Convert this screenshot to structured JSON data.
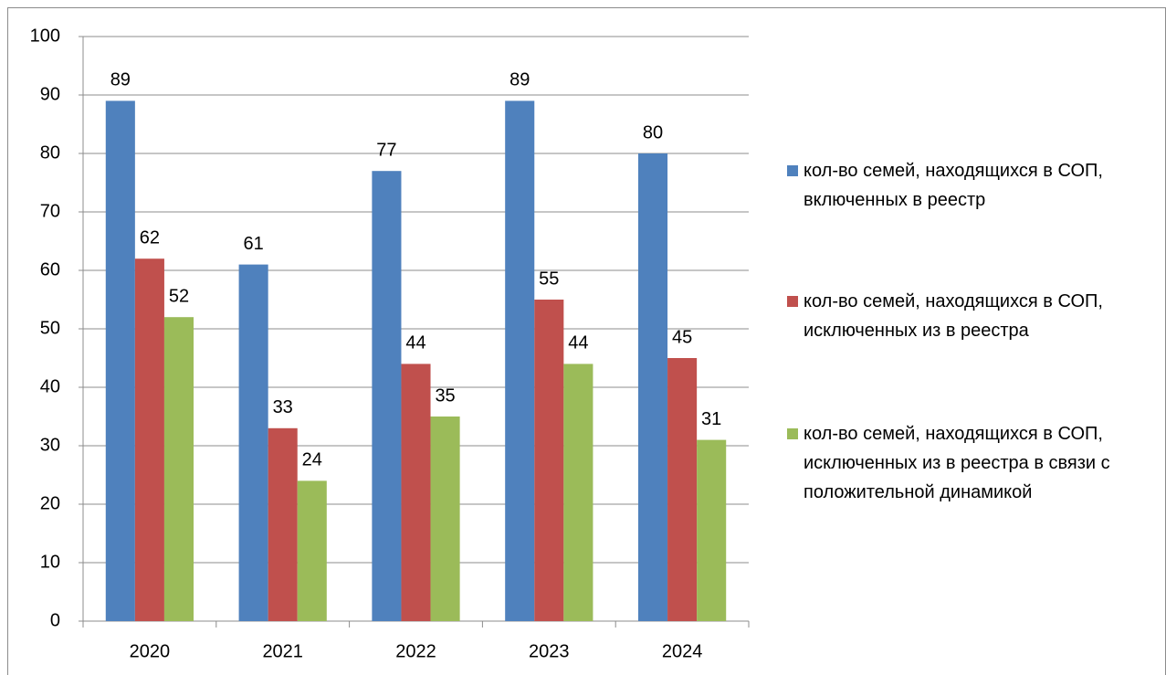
{
  "chart_data": {
    "type": "bar",
    "categories": [
      "2020",
      "2021",
      "2022",
      "2023",
      "2024"
    ],
    "series": [
      {
        "name": "кол-во семей, находящихся в СОП, включенных в реестр",
        "color": "#4f81bd",
        "values": [
          89,
          61,
          77,
          89,
          80
        ]
      },
      {
        "name": "кол-во семей, находящихся в СОП, исключенных из в реестра",
        "color": "#c0504d",
        "values": [
          62,
          33,
          44,
          55,
          45
        ]
      },
      {
        "name": "кол-во семей, находящихся в СОП, исключенных из в реестра в связи с положительной динамикой",
        "color": "#9bbb59",
        "values": [
          52,
          24,
          35,
          44,
          31
        ]
      }
    ],
    "ylim": [
      0,
      100
    ],
    "yticks": [
      0,
      10,
      20,
      30,
      40,
      50,
      60,
      70,
      80,
      90,
      100
    ],
    "grid": true,
    "legend": "right"
  }
}
